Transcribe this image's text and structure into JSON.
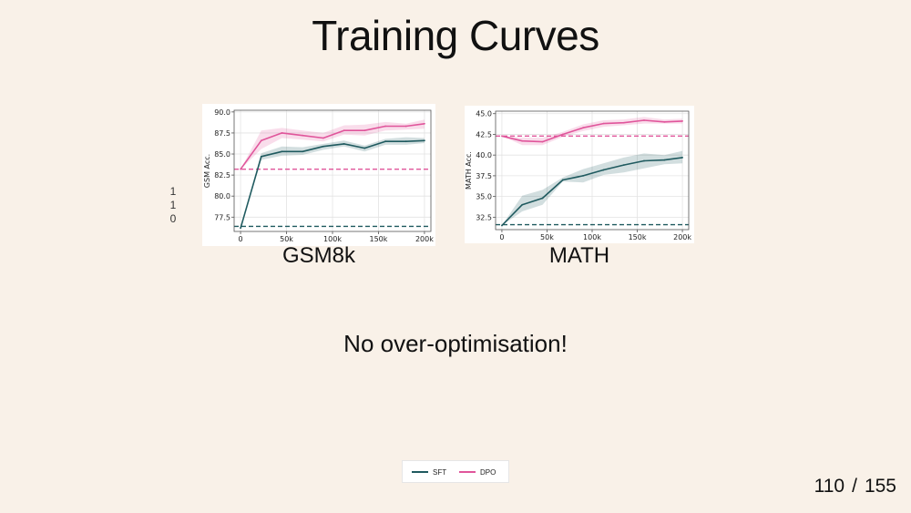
{
  "slide": {
    "title": "Training Curves",
    "side_digits": [
      "1",
      "1",
      "0"
    ],
    "subtitle": "No over-optimisation!",
    "page_current": "110",
    "page_separator": "/",
    "page_total": "155"
  },
  "legend": {
    "entries": [
      {
        "label": "SFT",
        "color": "#1f5a5f"
      },
      {
        "label": "DPO",
        "color": "#e0559b"
      }
    ]
  },
  "chart_data": [
    {
      "type": "line",
      "caption": "GSM8k",
      "ylabel": "GSM Acc.",
      "xlabel": "",
      "xlim": [
        -7000,
        207000
      ],
      "ylim": [
        75.8,
        90.2
      ],
      "xticks": [
        0,
        50000,
        100000,
        150000,
        200000
      ],
      "xtick_labels": [
        "0",
        "50k",
        "100k",
        "150k",
        "200k"
      ],
      "yticks": [
        77.5,
        80.0,
        82.5,
        85.0,
        87.5,
        90.0
      ],
      "ytick_labels": [
        "77.5",
        "80.0",
        "82.5",
        "85.0",
        "87.5",
        "90.0"
      ],
      "grid": true,
      "x": [
        0,
        22500,
        45000,
        67500,
        90000,
        112500,
        135000,
        157500,
        180000,
        200000
      ],
      "series": [
        {
          "name": "SFT",
          "color": "#1f5a5f",
          "values": [
            76.2,
            84.7,
            85.3,
            85.3,
            85.9,
            86.2,
            85.7,
            86.5,
            86.5,
            86.6
          ],
          "lower": [
            76.2,
            84.3,
            84.8,
            84.9,
            85.5,
            85.9,
            85.3,
            86.1,
            86.1,
            86.3
          ],
          "upper": [
            76.2,
            85.1,
            85.9,
            85.8,
            86.2,
            86.6,
            86.0,
            86.8,
            87.0,
            86.9
          ],
          "baseline": 76.4
        },
        {
          "name": "DPO",
          "color": "#e0559b",
          "values": [
            83.2,
            86.6,
            87.5,
            87.2,
            86.9,
            87.8,
            87.8,
            88.3,
            88.3,
            88.6
          ],
          "lower": [
            83.2,
            85.6,
            86.9,
            86.7,
            86.5,
            87.3,
            87.2,
            87.8,
            87.9,
            88.0
          ],
          "upper": [
            83.2,
            87.8,
            88.1,
            87.8,
            87.5,
            88.4,
            88.5,
            88.8,
            88.6,
            89.1
          ],
          "baseline": 83.2
        }
      ]
    },
    {
      "type": "line",
      "caption": "MATH",
      "ylabel": "MATH Acc.",
      "xlabel": "",
      "xlim": [
        -7000,
        207000
      ],
      "ylim": [
        31.0,
        45.3
      ],
      "xticks": [
        0,
        50000,
        100000,
        150000,
        200000
      ],
      "xtick_labels": [
        "0",
        "50k",
        "100k",
        "150k",
        "200k"
      ],
      "yticks": [
        32.5,
        35.0,
        37.5,
        40.0,
        42.5,
        45.0
      ],
      "ytick_labels": [
        "32.5",
        "35.0",
        "37.5",
        "40.0",
        "42.5",
        "45.0"
      ],
      "grid": true,
      "x": [
        0,
        22500,
        45000,
        67500,
        90000,
        112500,
        135000,
        157500,
        180000,
        200000
      ],
      "series": [
        {
          "name": "SFT",
          "color": "#1f5a5f",
          "values": [
            31.5,
            34.0,
            34.8,
            37.0,
            37.5,
            38.2,
            38.8,
            39.3,
            39.4,
            39.7
          ],
          "lower": [
            31.5,
            33.2,
            34.0,
            36.8,
            36.7,
            37.6,
            37.9,
            38.4,
            38.9,
            39.0
          ],
          "upper": [
            31.5,
            35.1,
            35.8,
            37.3,
            38.3,
            39.0,
            39.7,
            40.2,
            40.0,
            40.5
          ],
          "baseline": 31.6
        },
        {
          "name": "DPO",
          "color": "#e0559b",
          "values": [
            42.3,
            41.7,
            41.6,
            42.5,
            43.3,
            43.8,
            43.9,
            44.2,
            44.0,
            44.1
          ],
          "lower": [
            42.3,
            41.2,
            41.2,
            42.2,
            42.9,
            43.4,
            43.6,
            43.8,
            43.8,
            43.8
          ],
          "upper": [
            42.3,
            42.1,
            42.1,
            42.8,
            43.7,
            44.2,
            44.3,
            44.6,
            44.3,
            44.4
          ],
          "baseline": 42.3
        }
      ]
    }
  ]
}
